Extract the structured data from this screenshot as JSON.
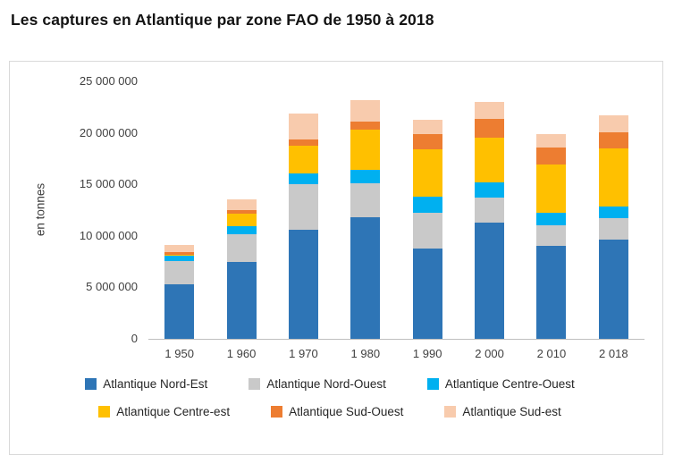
{
  "title": "Les captures en Atlantique par zone FAO de 1950 à 2018",
  "chart_data": {
    "type": "bar",
    "stacked": true,
    "title": "Les captures en Atlantique par zone FAO de 1950 à 2018",
    "xlabel": "",
    "ylabel": "en tonnes",
    "ylim": [
      0,
      25000000
    ],
    "ytick_interval": 5000000,
    "ytick_labels": [
      "0",
      "5 000 000",
      "10 000 000",
      "15 000 000",
      "20 000 000",
      "25 000 000"
    ],
    "grid": false,
    "legend_position": "bottom",
    "categories": [
      "1 950",
      "1 960",
      "1 970",
      "1 980",
      "1 990",
      "2 000",
      "2 010",
      "2 018"
    ],
    "series": [
      {
        "name": "Atlantique Nord-Est",
        "color": "#2E75B6",
        "values": [
          5300000,
          7500000,
          10600000,
          11800000,
          8800000,
          11300000,
          9000000,
          9600000
        ]
      },
      {
        "name": "Atlantique Nord-Ouest",
        "color": "#C9C9C9",
        "values": [
          2250000,
          2650000,
          4400000,
          3300000,
          3400000,
          2400000,
          2000000,
          2100000
        ]
      },
      {
        "name": "Atlantique Centre-Ouest",
        "color": "#00B0F0",
        "values": [
          500000,
          750000,
          1100000,
          1300000,
          1600000,
          1500000,
          1200000,
          1150000
        ]
      },
      {
        "name": "Atlantique Centre-est",
        "color": "#FFC000",
        "values": [
          150000,
          1250000,
          2650000,
          3900000,
          4600000,
          4300000,
          4700000,
          5650000
        ]
      },
      {
        "name": "Atlantique Sud-Ouest",
        "color": "#ED7D31",
        "values": [
          200000,
          350000,
          600000,
          800000,
          1500000,
          1850000,
          1700000,
          1550000
        ]
      },
      {
        "name": "Atlantique Sud-est",
        "color": "#F8CBAD",
        "values": [
          700000,
          1050000,
          2550000,
          2100000,
          1400000,
          1650000,
          1300000,
          1650000
        ]
      }
    ],
    "legend_rows": [
      [
        0,
        3
      ],
      [
        3,
        6
      ]
    ]
  }
}
